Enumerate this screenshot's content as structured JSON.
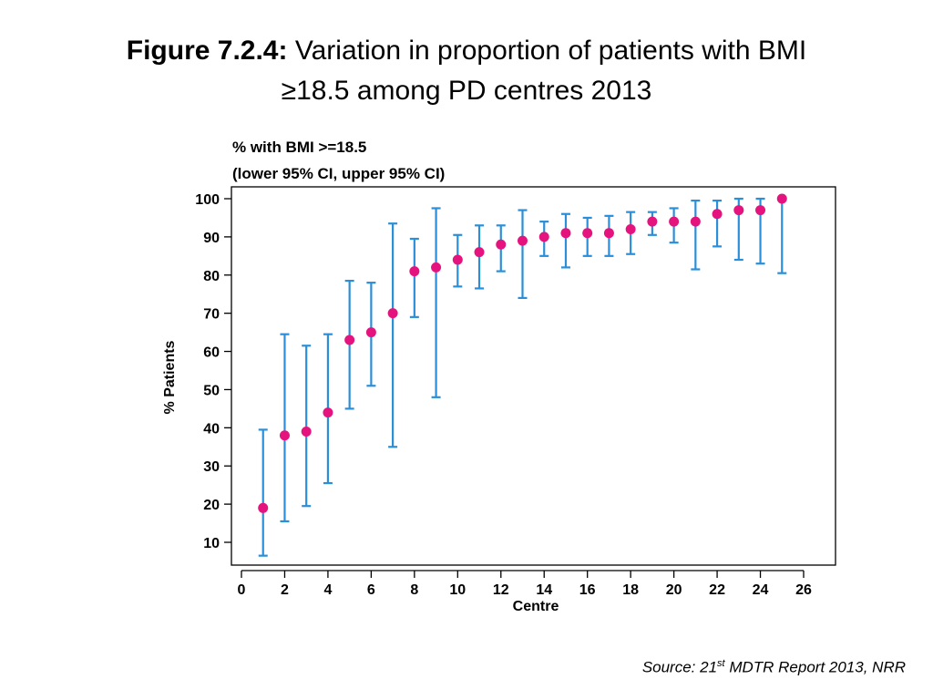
{
  "title": {
    "bold_part": "Figure 7.2.4:",
    "line1_rest": "Variation in proportion of patients with BMI",
    "line2": "≥18.5 among PD centres 2013"
  },
  "legend": {
    "line1": "% with BMI >=18.5",
    "line2": "(lower 95% CI, upper 95% CI)"
  },
  "source": {
    "prefix": "Source: 21",
    "superscript": "st",
    "suffix": " MDTR Report 2013, NRR"
  },
  "colors": {
    "point": "#e5137e",
    "ci_bar": "#2a8fd8",
    "axis": "#000000"
  },
  "chart_data": {
    "type": "scatter",
    "title": "Figure 7.2.4: Variation in proportion of patients with BMI ≥18.5 among PD centres 2013",
    "xlabel": "Centre",
    "ylabel": "% Patients",
    "xlim": [
      0,
      27
    ],
    "ylim": [
      5,
      101
    ],
    "x_ticks": [
      0,
      2,
      4,
      6,
      8,
      10,
      12,
      14,
      16,
      18,
      20,
      22,
      24,
      26
    ],
    "y_ticks": [
      10,
      20,
      30,
      40,
      50,
      60,
      70,
      80,
      90,
      100
    ],
    "grid": false,
    "series": [
      {
        "name": "% with BMI >=18.5 (lower 95% CI, upper 95% CI)",
        "points": [
          {
            "x": 1,
            "y": 19,
            "lower": 6.5,
            "upper": 39.5
          },
          {
            "x": 2,
            "y": 38,
            "lower": 15.5,
            "upper": 64.5
          },
          {
            "x": 3,
            "y": 39,
            "lower": 19.5,
            "upper": 61.5
          },
          {
            "x": 4,
            "y": 44,
            "lower": 25.5,
            "upper": 64.5
          },
          {
            "x": 5,
            "y": 63,
            "lower": 45,
            "upper": 78.5
          },
          {
            "x": 6,
            "y": 65,
            "lower": 51,
            "upper": 78
          },
          {
            "x": 7,
            "y": 70,
            "lower": 35,
            "upper": 93.5
          },
          {
            "x": 8,
            "y": 81,
            "lower": 69,
            "upper": 89.5
          },
          {
            "x": 9,
            "y": 82,
            "lower": 48,
            "upper": 97.5
          },
          {
            "x": 10,
            "y": 84,
            "lower": 77,
            "upper": 90.5
          },
          {
            "x": 11,
            "y": 86,
            "lower": 76.5,
            "upper": 93
          },
          {
            "x": 12,
            "y": 88,
            "lower": 81,
            "upper": 93
          },
          {
            "x": 13,
            "y": 89,
            "lower": 74,
            "upper": 97
          },
          {
            "x": 14,
            "y": 90,
            "lower": 85,
            "upper": 94
          },
          {
            "x": 15,
            "y": 91,
            "lower": 82,
            "upper": 96
          },
          {
            "x": 16,
            "y": 91,
            "lower": 85,
            "upper": 95
          },
          {
            "x": 17,
            "y": 91,
            "lower": 85,
            "upper": 95.5
          },
          {
            "x": 18,
            "y": 92,
            "lower": 85.5,
            "upper": 96.5
          },
          {
            "x": 19,
            "y": 94,
            "lower": 90.5,
            "upper": 96.5
          },
          {
            "x": 20,
            "y": 94,
            "lower": 88.5,
            "upper": 97.5
          },
          {
            "x": 21,
            "y": 94,
            "lower": 81.5,
            "upper": 99.5
          },
          {
            "x": 22,
            "y": 96,
            "lower": 87.5,
            "upper": 99.5
          },
          {
            "x": 23,
            "y": 97,
            "lower": 84,
            "upper": 100
          },
          {
            "x": 24,
            "y": 97,
            "lower": 83,
            "upper": 100
          },
          {
            "x": 25,
            "y": 100,
            "lower": 80.5,
            "upper": 100
          }
        ]
      }
    ]
  }
}
